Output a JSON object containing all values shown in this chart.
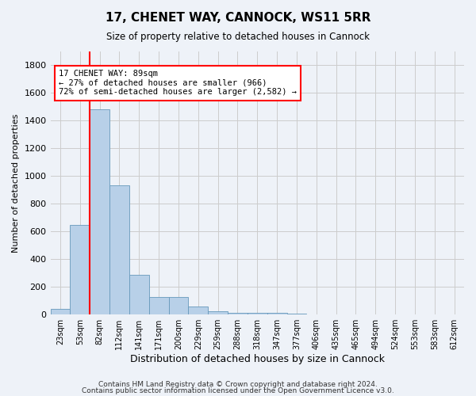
{
  "title": "17, CHENET WAY, CANNOCK, WS11 5RR",
  "subtitle": "Size of property relative to detached houses in Cannock",
  "xlabel": "Distribution of detached houses by size in Cannock",
  "ylabel": "Number of detached properties",
  "footnote1": "Contains HM Land Registry data © Crown copyright and database right 2024.",
  "footnote2": "Contains public sector information licensed under the Open Government Licence v3.0.",
  "bar_labels": [
    "23sqm",
    "53sqm",
    "82sqm",
    "112sqm",
    "141sqm",
    "171sqm",
    "200sqm",
    "229sqm",
    "259sqm",
    "288sqm",
    "318sqm",
    "347sqm",
    "377sqm",
    "406sqm",
    "435sqm",
    "465sqm",
    "494sqm",
    "524sqm",
    "553sqm",
    "583sqm",
    "612sqm"
  ],
  "bar_values": [
    40,
    650,
    1480,
    935,
    290,
    125,
    125,
    60,
    22,
    15,
    15,
    10,
    5,
    0,
    0,
    0,
    0,
    0,
    0,
    0,
    0
  ],
  "bar_color": "#b8d0e8",
  "bar_edge_color": "#6699bb",
  "grid_color": "#cccccc",
  "vline_color": "red",
  "annotation_text": "17 CHENET WAY: 89sqm\n← 27% of detached houses are smaller (966)\n72% of semi-detached houses are larger (2,582) →",
  "annotation_box_color": "red",
  "ylim": [
    0,
    1900
  ],
  "yticks": [
    0,
    200,
    400,
    600,
    800,
    1000,
    1200,
    1400,
    1600,
    1800
  ],
  "bg_color": "#eef2f8"
}
